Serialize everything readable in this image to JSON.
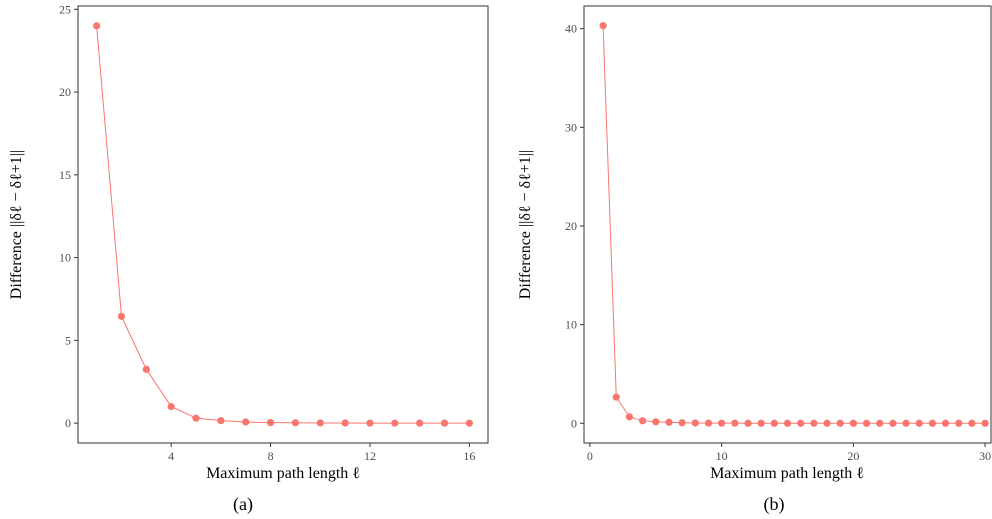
{
  "chart_data": [
    {
      "type": "line",
      "caption": "(a)",
      "xlabel": "Maximum path length ℓ",
      "ylabel": "Difference ||δℓ − δℓ+1||",
      "xlim": [
        0.25,
        16.75
      ],
      "ylim": [
        -1.2,
        25.2
      ],
      "xticks": [
        4,
        8,
        12,
        16
      ],
      "yticks": [
        0,
        5,
        10,
        15,
        20,
        25
      ],
      "grid": false,
      "color": "#F8766D",
      "series": [
        {
          "x": [
            1,
            2,
            3,
            4,
            5,
            6,
            7,
            8,
            9,
            10,
            11,
            12,
            13,
            14,
            15,
            16
          ],
          "values": [
            24.0,
            6.45,
            3.25,
            1.0,
            0.3,
            0.15,
            0.07,
            0.03,
            0.02,
            0.01,
            0.01,
            0.0,
            0.0,
            0.0,
            0.0,
            0.0
          ]
        }
      ]
    },
    {
      "type": "line",
      "caption": "(b)",
      "xlabel": "Maximum path length ℓ",
      "ylabel": "Difference ||δℓ − δℓ+1||",
      "xlim": [
        -0.45,
        30.45
      ],
      "ylim": [
        -2.0,
        42.3
      ],
      "xticks": [
        0,
        10,
        20,
        30
      ],
      "yticks": [
        0,
        10,
        20,
        30,
        40
      ],
      "grid": false,
      "color": "#F8766D",
      "series": [
        {
          "x": [
            1,
            2,
            3,
            4,
            5,
            6,
            7,
            8,
            9,
            10,
            11,
            12,
            13,
            14,
            15,
            16,
            17,
            18,
            19,
            20,
            21,
            22,
            23,
            24,
            25,
            26,
            27,
            28,
            29,
            30
          ],
          "values": [
            40.3,
            2.65,
            0.65,
            0.25,
            0.15,
            0.1,
            0.05,
            0.03,
            0.02,
            0.01,
            0.01,
            0.0,
            0.0,
            0.0,
            0.0,
            0.0,
            0.0,
            0.0,
            0.0,
            0.0,
            0.0,
            0.0,
            0.0,
            0.0,
            0.0,
            0.0,
            0.0,
            0.0,
            0.0,
            0.0
          ]
        }
      ]
    }
  ]
}
